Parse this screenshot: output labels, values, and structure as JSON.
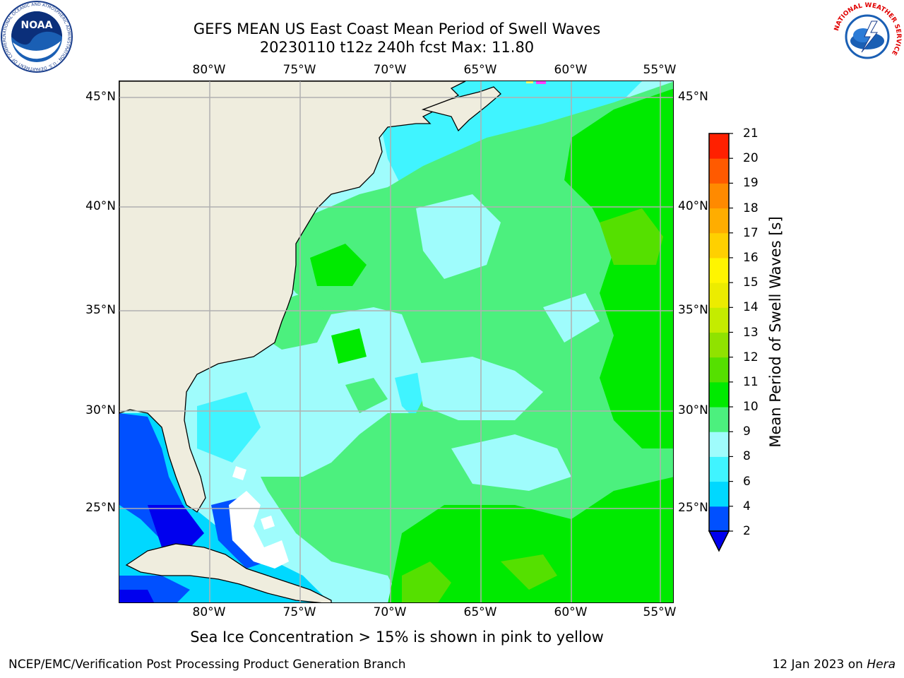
{
  "header": {
    "title_line1": "GEFS MEAN US East Coast Mean Period of Swell Waves",
    "title_line2": "20230110 t12z 240h fcst   Max: 11.80"
  },
  "map": {
    "lon_labels": [
      "80°W",
      "75°W",
      "70°W",
      "65°W",
      "60°W",
      "55°W"
    ],
    "lat_labels": [
      "45°N",
      "40°N",
      "35°N",
      "30°N",
      "25°N"
    ],
    "extent": {
      "lon_min": -85,
      "lon_max": -54.4,
      "lat_min": 20.4,
      "lat_max": 46.0
    },
    "land_color": "#efedde",
    "gridline_color": "#b0b0b0"
  },
  "colorbar": {
    "label": "Mean Period of Swell Waves [s]",
    "ticks": [
      "2",
      "4",
      "6",
      "8",
      "9",
      "10",
      "11",
      "12",
      "13",
      "14",
      "15",
      "16",
      "17",
      "18",
      "19",
      "20",
      "21"
    ],
    "colors": [
      "#0050ff",
      "#00d8ff",
      "#40f4ff",
      "#9ffcfc",
      "#4cf07e",
      "#00ea00",
      "#55e000",
      "#90e200",
      "#c4ec00",
      "#ecec00",
      "#fff500",
      "#ffd000",
      "#ffad00",
      "#ff8a00",
      "#ff5a00",
      "#ff2000"
    ],
    "under_color": "#0000ee"
  },
  "annotation": "Sea Ice Concentration > 15% is shown in pink to yellow",
  "footer": {
    "org": "NCEP/EMC/Verification Post Processing Product Generation Branch",
    "date": "12 Jan 2023 on",
    "machine": "Hera"
  },
  "logos": {
    "noaa_text": "NOAA",
    "noaa_ring": "NATIONAL OCEANIC AND ATMOSPHERIC ADMINISTRATION · U.S. DEPARTMENT OF COMMERCE",
    "nws_ring": "NATIONAL WEATHER SERVICE"
  }
}
